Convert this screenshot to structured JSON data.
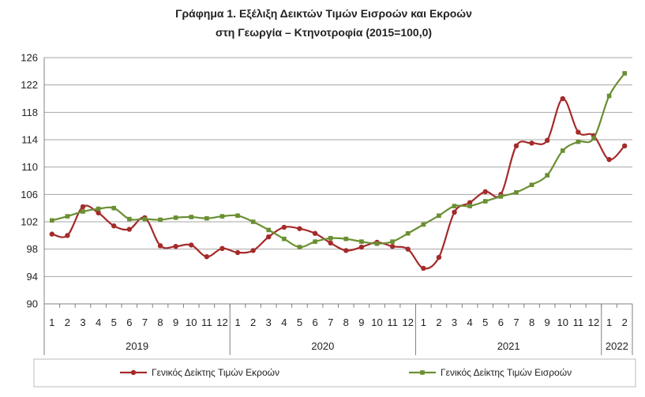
{
  "chart_data": {
    "type": "line",
    "title_lines": [
      "Γράφημα 1. Εξέλιξη Δεικτών Τιμών Εισροών και Εκροών",
      "στη Γεωργία – Κτηνοτροφία (2015=100,0)"
    ],
    "ylim": [
      90,
      126
    ],
    "yticks": [
      "90",
      "94",
      "98",
      "102",
      "106",
      "110",
      "114",
      "118",
      "122",
      "126"
    ],
    "grid": "horizontal",
    "legend_position": "bottom",
    "years": [
      {
        "label": "2019",
        "months": 12
      },
      {
        "label": "2020",
        "months": 12
      },
      {
        "label": "2021",
        "months": 12
      },
      {
        "label": "2022",
        "months": 2
      }
    ],
    "x": [
      "1",
      "2",
      "3",
      "4",
      "5",
      "6",
      "7",
      "8",
      "9",
      "10",
      "11",
      "12",
      "1",
      "2",
      "3",
      "4",
      "5",
      "6",
      "7",
      "8",
      "9",
      "10",
      "11",
      "12",
      "1",
      "2",
      "3",
      "4",
      "5",
      "6",
      "7",
      "8",
      "9",
      "10",
      "11",
      "12",
      "1",
      "2"
    ],
    "series": [
      {
        "name": "Γενικός Δείκτης Τιμών Εκροών",
        "color": "#a52a2a",
        "values": [
          100.2,
          100.0,
          104.2,
          103.3,
          101.4,
          100.9,
          102.6,
          98.5,
          98.4,
          98.6,
          96.9,
          98.1,
          97.5,
          97.8,
          99.8,
          101.2,
          101.0,
          100.3,
          98.9,
          97.8,
          98.3,
          99.0,
          98.4,
          98.0,
          95.2,
          96.8,
          103.4,
          104.8,
          106.4,
          106.0,
          113.1,
          113.5,
          113.9,
          120.0,
          115.1,
          114.6,
          111.1,
          113.1
        ]
      },
      {
        "name": "Γενικός Δείκτης Τιμών Εισροών",
        "color": "#6a8f32",
        "values": [
          102.2,
          102.8,
          103.5,
          103.9,
          104.0,
          102.4,
          102.4,
          102.3,
          102.6,
          102.7,
          102.5,
          102.8,
          102.9,
          102.0,
          100.8,
          99.5,
          98.3,
          99.1,
          99.6,
          99.5,
          99.1,
          98.8,
          99.1,
          100.3,
          101.6,
          102.9,
          104.3,
          104.3,
          105.0,
          105.7,
          106.3,
          107.4,
          108.8,
          112.4,
          113.7,
          114.2,
          120.4,
          123.7
        ]
      }
    ]
  }
}
